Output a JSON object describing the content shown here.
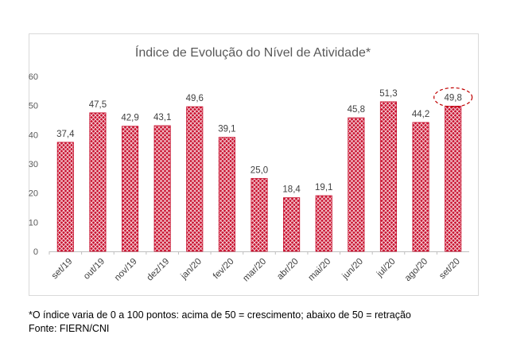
{
  "chart_data": {
    "type": "bar",
    "title": "Índice de Evolução do Nível de Atividade*",
    "xlabel": "",
    "ylabel": "",
    "ylim": [
      0,
      60
    ],
    "yticks": [
      0,
      10,
      20,
      30,
      40,
      50,
      60
    ],
    "grid": false,
    "legend": "none",
    "categories": [
      "set/19",
      "out/19",
      "nov/19",
      "dez/19",
      "jan/20",
      "fev/20",
      "mar/20",
      "abr/20",
      "mai/20",
      "jun/20",
      "jul/20",
      "ago/20",
      "set/20"
    ],
    "values": [
      37.4,
      47.5,
      42.9,
      43.1,
      49.6,
      39.1,
      25.0,
      18.4,
      19.1,
      45.8,
      51.3,
      44.2,
      49.8
    ],
    "data_labels": [
      "37,4",
      "47,5",
      "42,9",
      "43,1",
      "49,6",
      "39,1",
      "25,0",
      "18,4",
      "19,1",
      "45,8",
      "51,3",
      "44,2",
      "49,8"
    ],
    "highlighted_label": "49,8",
    "bar_color": "#c8102e",
    "bar_pattern": "diamond-hatch"
  },
  "footnotes": {
    "note": "*O índice varia de 0 a 100 pontos: acima de 50 = crescimento; abaixo de 50 = retração",
    "source": "Fonte: FIERN/CNI"
  }
}
